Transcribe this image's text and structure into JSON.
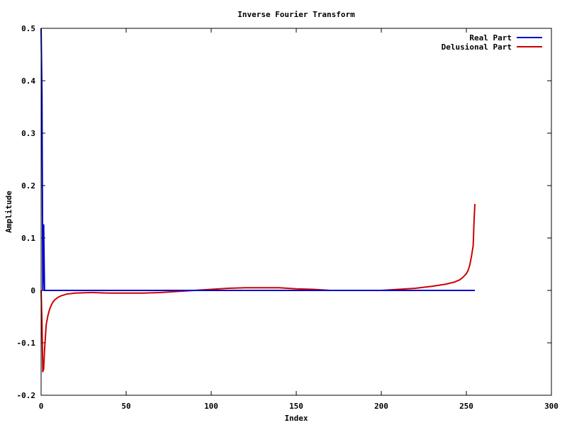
{
  "chart_data": {
    "type": "line",
    "title": "Inverse Fourier Transform",
    "xlabel": "Index",
    "ylabel": "Amplitude",
    "xlim": [
      0,
      300
    ],
    "ylim": [
      -0.2,
      0.5
    ],
    "x_ticks": [
      0,
      50,
      100,
      150,
      200,
      250,
      300
    ],
    "x_tick_labels": [
      "0",
      "50",
      "100",
      "150",
      "200",
      "250",
      "300"
    ],
    "y_ticks": [
      -0.2,
      -0.1,
      0,
      0.1,
      0.2,
      0.3,
      0.4,
      0.5
    ],
    "y_tick_labels": [
      "-0.2",
      "-0.1",
      "0",
      "0.1",
      "0.2",
      "0.3",
      "0.4",
      "0.5"
    ],
    "grid": false,
    "legend_position": "top-right",
    "series": [
      {
        "name": "Real Part",
        "color": "#0000cc",
        "points": [
          [
            0,
            0.5
          ],
          [
            0.5,
            0.375
          ],
          [
            1,
            0.0
          ],
          [
            1.5,
            0.125
          ],
          [
            2,
            0.0
          ],
          [
            3,
            0.0
          ],
          [
            10,
            0.0
          ],
          [
            50,
            0.0
          ],
          [
            100,
            0.0
          ],
          [
            150,
            0.0
          ],
          [
            200,
            0.0
          ],
          [
            255,
            0.0
          ]
        ]
      },
      {
        "name": "Delusional Part",
        "color": "#cc0000",
        "points": [
          [
            0,
            0.0
          ],
          [
            0.5,
            -0.06
          ],
          [
            1,
            -0.155
          ],
          [
            1.5,
            -0.15
          ],
          [
            2,
            -0.115
          ],
          [
            3,
            -0.065
          ],
          [
            4,
            -0.048
          ],
          [
            5,
            -0.036
          ],
          [
            6,
            -0.028
          ],
          [
            7,
            -0.022
          ],
          [
            8,
            -0.018
          ],
          [
            10,
            -0.013
          ],
          [
            12,
            -0.01
          ],
          [
            15,
            -0.007
          ],
          [
            20,
            -0.005
          ],
          [
            30,
            -0.004
          ],
          [
            40,
            -0.005
          ],
          [
            50,
            -0.005
          ],
          [
            60,
            -0.005
          ],
          [
            70,
            -0.004
          ],
          [
            80,
            -0.002
          ],
          [
            90,
            0.0
          ],
          [
            100,
            0.002
          ],
          [
            110,
            0.004
          ],
          [
            120,
            0.005
          ],
          [
            130,
            0.005
          ],
          [
            140,
            0.005
          ],
          [
            150,
            0.003
          ],
          [
            160,
            0.002
          ],
          [
            170,
            0.0
          ],
          [
            180,
            0.0
          ],
          [
            190,
            0.0
          ],
          [
            200,
            0.0
          ],
          [
            210,
            0.002
          ],
          [
            220,
            0.004
          ],
          [
            230,
            0.008
          ],
          [
            238,
            0.012
          ],
          [
            243,
            0.016
          ],
          [
            246,
            0.02
          ],
          [
            248,
            0.025
          ],
          [
            250,
            0.032
          ],
          [
            251,
            0.038
          ],
          [
            252,
            0.048
          ],
          [
            253,
            0.065
          ],
          [
            254,
            0.085
          ],
          [
            254.5,
            0.13
          ],
          [
            255,
            0.165
          ]
        ]
      }
    ]
  }
}
